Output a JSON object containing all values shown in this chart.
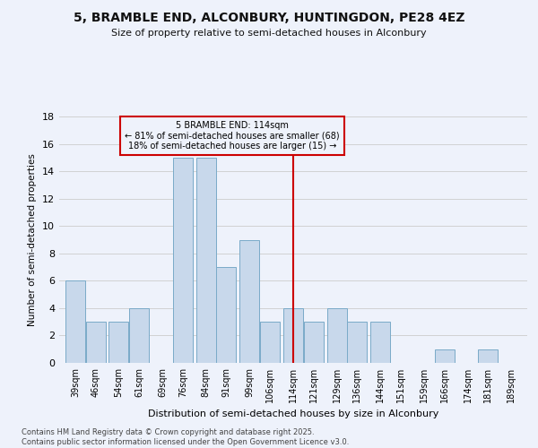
{
  "title": "5, BRAMBLE END, ALCONBURY, HUNTINGDON, PE28 4EZ",
  "subtitle": "Size of property relative to semi-detached houses in Alconbury",
  "xlabel": "Distribution of semi-detached houses by size in Alconbury",
  "ylabel": "Number of semi-detached properties",
  "footnote1": "Contains HM Land Registry data © Crown copyright and database right 2025.",
  "footnote2": "Contains public sector information licensed under the Open Government Licence v3.0.",
  "bar_color": "#c8d8eb",
  "bar_edge_color": "#7aaac8",
  "background_color": "#eef2fb",
  "grid_color": "#cccccc",
  "vline_x": 114,
  "vline_color": "#cc0000",
  "annotation_text": "5 BRAMBLE END: 114sqm\n← 81% of semi-detached houses are smaller (68)\n18% of semi-detached houses are larger (15) →",
  "annotation_box_color": "#cc0000",
  "categories": [
    39,
    46,
    54,
    61,
    69,
    76,
    84,
    91,
    99,
    106,
    114,
    121,
    129,
    136,
    144,
    151,
    159,
    166,
    174,
    181,
    189
  ],
  "values": [
    6,
    3,
    3,
    4,
    0,
    15,
    15,
    7,
    9,
    3,
    4,
    3,
    4,
    3,
    3,
    0,
    0,
    1,
    0,
    1,
    0
  ],
  "ylim": [
    0,
    18
  ],
  "yticks": [
    0,
    2,
    4,
    6,
    8,
    10,
    12,
    14,
    16,
    18
  ]
}
